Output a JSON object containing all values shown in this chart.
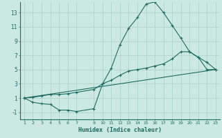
{
  "xlabel": "Humidex (Indice chaleur)",
  "bg_color": "#cce8e2",
  "grid_color": "#aacfca",
  "line_color": "#1a6b62",
  "xlim": [
    0.5,
    23.5
  ],
  "ylim": [
    -2,
    14.5
  ],
  "xticks": [
    1,
    2,
    3,
    4,
    5,
    6,
    7,
    9,
    10,
    11,
    12,
    13,
    14,
    15,
    16,
    17,
    18,
    19,
    20,
    21,
    22,
    23
  ],
  "yticks": [
    -1,
    1,
    3,
    5,
    7,
    9,
    11,
    13
  ],
  "line1_x": [
    1,
    2,
    3,
    4,
    5,
    6,
    7,
    9,
    10,
    11,
    12,
    13,
    14,
    15,
    16,
    17,
    18,
    19,
    20,
    21,
    22,
    23
  ],
  "line1_y": [
    1,
    0.4,
    0.2,
    0.1,
    -0.7,
    -0.7,
    -0.9,
    -0.5,
    3.0,
    5.2,
    8.5,
    10.8,
    12.3,
    14.2,
    14.5,
    13.0,
    11.2,
    9.4,
    7.5,
    6.7,
    5.0,
    5.0
  ],
  "line2_x": [
    1,
    2,
    3,
    4,
    5,
    6,
    7,
    9,
    10,
    11,
    12,
    13,
    14,
    15,
    16,
    17,
    18,
    19,
    20,
    21,
    22,
    23
  ],
  "line2_y": [
    1,
    1.1,
    1.3,
    1.5,
    1.5,
    1.6,
    1.8,
    2.2,
    3.0,
    3.5,
    4.2,
    4.8,
    5.0,
    5.2,
    5.5,
    5.8,
    6.5,
    7.5,
    7.5,
    6.7,
    6.0,
    5.0
  ],
  "line3_x": [
    1,
    23
  ],
  "line3_y": [
    1,
    5.0
  ]
}
